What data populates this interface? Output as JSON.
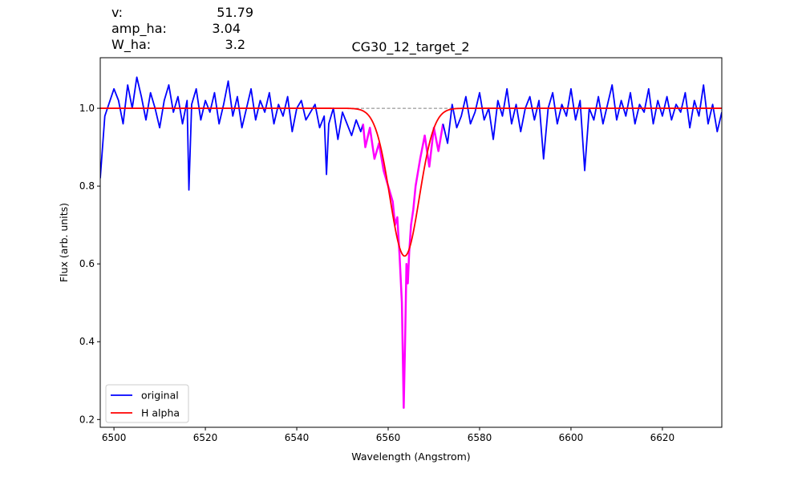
{
  "header": {
    "params": [
      {
        "label": "v:",
        "value": "51.79"
      },
      {
        "label": "amp_ha:",
        "value": "3.04"
      },
      {
        "label": "W_ha:",
        "value": "3.2"
      }
    ],
    "title": "CG30_12_target_2"
  },
  "chart_data": {
    "type": "line",
    "title": "CG30_12_target_2",
    "xlabel": "Wavelength (Angstrom)",
    "ylabel": "Flux (arb. units)",
    "xlim": [
      6497,
      6633
    ],
    "ylim": [
      0.18,
      1.13
    ],
    "xticks": [
      6500,
      6520,
      6540,
      6560,
      6580,
      6600,
      6620
    ],
    "yticks": [
      0.2,
      0.4,
      0.6,
      0.8,
      1.0
    ],
    "xtick_labels": [
      "6500",
      "6520",
      "6540",
      "6560",
      "6580",
      "6600",
      "6620"
    ],
    "ytick_labels": [
      "0.2",
      "0.4",
      "0.6",
      "0.8",
      "1.0"
    ],
    "grid": false,
    "legend": {
      "position": "lower-left",
      "entries": [
        "original",
        "H alpha"
      ]
    },
    "reference_line": {
      "y": 1.0,
      "style": "dashed",
      "color": "#808080"
    },
    "series": [
      {
        "name": "original",
        "color": "#0000ff",
        "x": [
          6497,
          6498,
          6500,
          6501,
          6502,
          6503,
          6504,
          6505,
          6506,
          6507,
          6508,
          6509,
          6510,
          6511,
          6512,
          6513,
          6514,
          6515,
          6516,
          6516.4,
          6516.7,
          6517,
          6518,
          6519,
          6520,
          6521,
          6522,
          6523,
          6524,
          6525,
          6526,
          6527,
          6528,
          6529,
          6530,
          6531,
          6532,
          6533,
          6534,
          6535,
          6536,
          6537,
          6538,
          6539,
          6540,
          6541,
          6542,
          6543,
          6544,
          6545,
          6546,
          6546.5,
          6547,
          6548,
          6549,
          6550,
          6551,
          6552,
          6553,
          6554,
          6554.5
        ],
        "y": [
          0.82,
          0.98,
          1.05,
          1.02,
          0.96,
          1.06,
          1.0,
          1.08,
          1.03,
          0.97,
          1.04,
          1.0,
          0.95,
          1.02,
          1.06,
          0.99,
          1.03,
          0.96,
          1.02,
          0.79,
          0.9,
          1.01,
          1.05,
          0.97,
          1.02,
          0.99,
          1.04,
          0.96,
          1.01,
          1.07,
          0.98,
          1.03,
          0.95,
          1.0,
          1.05,
          0.97,
          1.02,
          0.99,
          1.04,
          0.96,
          1.01,
          0.98,
          1.03,
          0.94,
          1.0,
          1.02,
          0.97,
          0.99,
          1.01,
          0.95,
          0.98,
          0.83,
          0.96,
          1.0,
          0.92,
          0.99,
          0.96,
          0.93,
          0.97,
          0.94,
          0.96
        ]
      },
      {
        "name": "",
        "color": "#ff00ff",
        "x": [
          6554.5,
          6555,
          6556,
          6557,
          6558,
          6559,
          6560,
          6561,
          6561.5,
          6562,
          6562.5,
          6563,
          6563.4,
          6563.7,
          6564,
          6564.3,
          6564.6,
          6565,
          6565.5,
          6566,
          6567,
          6568,
          6569,
          6570,
          6571,
          6572
        ],
        "y": [
          0.96,
          0.9,
          0.95,
          0.87,
          0.91,
          0.84,
          0.8,
          0.76,
          0.7,
          0.72,
          0.62,
          0.5,
          0.23,
          0.4,
          0.6,
          0.55,
          0.63,
          0.7,
          0.74,
          0.8,
          0.87,
          0.93,
          0.85,
          0.95,
          0.89,
          0.96
        ]
      },
      {
        "name": "",
        "color": "#0000ff",
        "x": [
          6572,
          6573,
          6574,
          6575,
          6576,
          6577,
          6578,
          6579,
          6580,
          6581,
          6582,
          6583,
          6584,
          6585,
          6586,
          6587,
          6588,
          6589,
          6590,
          6591,
          6592,
          6593,
          6594,
          6595,
          6596,
          6597,
          6598,
          6599,
          6600,
          6601,
          6602,
          6603,
          6604,
          6605,
          6606,
          6607,
          6608,
          6609,
          6610,
          6611,
          6612,
          6613,
          6614,
          6615,
          6616,
          6617,
          6618,
          6619,
          6620,
          6621,
          6622,
          6623,
          6624,
          6625,
          6626,
          6627,
          6628,
          6629,
          6630,
          6631,
          6632,
          6633
        ],
        "y": [
          0.96,
          0.91,
          1.01,
          0.95,
          0.98,
          1.03,
          0.96,
          0.99,
          1.04,
          0.97,
          1.0,
          0.92,
          1.02,
          0.98,
          1.05,
          0.96,
          1.01,
          0.94,
          1.0,
          1.03,
          0.97,
          1.02,
          0.87,
          1.0,
          1.04,
          0.96,
          1.01,
          0.98,
          1.05,
          0.97,
          1.02,
          0.84,
          1.0,
          0.97,
          1.03,
          0.96,
          1.01,
          1.06,
          0.97,
          1.02,
          0.98,
          1.04,
          0.96,
          1.01,
          0.99,
          1.05,
          0.96,
          1.02,
          0.98,
          1.03,
          0.97,
          1.01,
          0.99,
          1.04,
          0.95,
          1.02,
          0.98,
          1.06,
          0.96,
          1.01,
          0.94,
          0.99
        ]
      },
      {
        "name": "H alpha",
        "color": "#ff0000",
        "model": {
          "type": "gaussian",
          "center": 6563.6,
          "sigma": 3.2,
          "depth": 0.38,
          "continuum": 1.0
        },
        "x_range": [
          6497,
          6633
        ]
      }
    ]
  }
}
